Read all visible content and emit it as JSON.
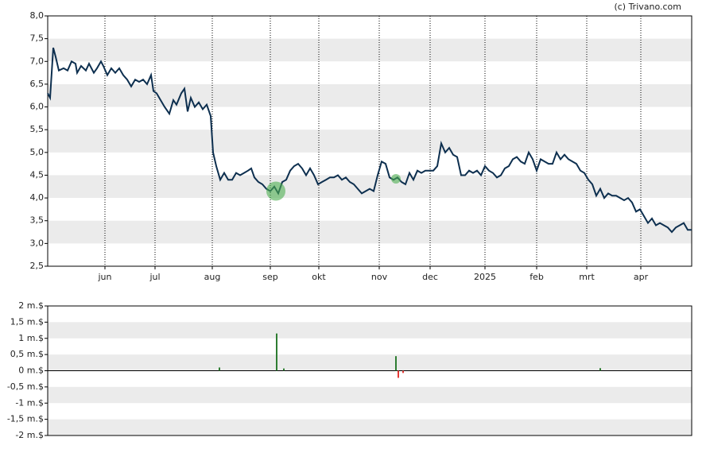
{
  "chart_data": [
    {
      "type": "line",
      "source": "(c) Trivano.com",
      "color": "#0d2f4f",
      "bands": true,
      "x": [
        0,
        3,
        7,
        10,
        14,
        20,
        25,
        30,
        35,
        37,
        42,
        48,
        52,
        58,
        62,
        67,
        70,
        75,
        80,
        85,
        90,
        95,
        100,
        105,
        110,
        115,
        120,
        125,
        130,
        133,
        137,
        142,
        147,
        153,
        158,
        162,
        168,
        172,
        176,
        180,
        185,
        190,
        195,
        200,
        205,
        208,
        212,
        217,
        222,
        227,
        232,
        237,
        242,
        247,
        252,
        256,
        260,
        265,
        270,
        275,
        280,
        285,
        290,
        295,
        300,
        305,
        310,
        315,
        320,
        325,
        330,
        335,
        340,
        345,
        350,
        355,
        360,
        365,
        370,
        375,
        380,
        385,
        390,
        395,
        400,
        405,
        410,
        415,
        420,
        425,
        430,
        435,
        440,
        445,
        450,
        455,
        460,
        465,
        470,
        475,
        480,
        485,
        490,
        495,
        500,
        505,
        510,
        515,
        520,
        525,
        530,
        535,
        540,
        545,
        550,
        555,
        560,
        565,
        570,
        575,
        580,
        585,
        590,
        595,
        600,
        605,
        610,
        615,
        620,
        625,
        630,
        635,
        640,
        645,
        650,
        655,
        660,
        665,
        670,
        675,
        680,
        685,
        690,
        695,
        700,
        705,
        710,
        715,
        720,
        725,
        730,
        735,
        740,
        745,
        750,
        755,
        760,
        765,
        770,
        775,
        780,
        785,
        790,
        795,
        800,
        805,
        810
      ],
      "values": [
        6.3,
        6.2,
        7.3,
        7.1,
        6.8,
        6.85,
        6.8,
        7.0,
        6.95,
        6.75,
        6.9,
        6.8,
        6.95,
        6.75,
        6.85,
        7.0,
        6.9,
        6.7,
        6.85,
        6.75,
        6.85,
        6.7,
        6.6,
        6.45,
        6.6,
        6.55,
        6.6,
        6.5,
        6.7,
        6.35,
        6.3,
        6.15,
        6.0,
        5.85,
        6.15,
        6.05,
        6.3,
        6.4,
        5.9,
        6.2,
        6.0,
        6.1,
        5.95,
        6.05,
        5.8,
        5.0,
        4.7,
        4.4,
        4.55,
        4.4,
        4.4,
        4.55,
        4.5,
        4.55,
        4.6,
        4.65,
        4.45,
        4.35,
        4.3,
        4.2,
        4.15,
        4.25,
        4.1,
        4.35,
        4.4,
        4.6,
        4.7,
        4.75,
        4.65,
        4.5,
        4.65,
        4.5,
        4.3,
        4.35,
        4.4,
        4.45,
        4.45,
        4.5,
        4.4,
        4.45,
        4.35,
        4.3,
        4.2,
        4.1,
        4.15,
        4.2,
        4.15,
        4.5,
        4.8,
        4.75,
        4.45,
        4.4,
        4.45,
        4.35,
        4.3,
        4.55,
        4.4,
        4.6,
        4.55,
        4.6,
        4.6,
        4.6,
        4.7,
        5.2,
        5.0,
        5.1,
        4.95,
        4.9,
        4.5,
        4.5,
        4.6,
        4.55,
        4.6,
        4.5,
        4.7,
        4.6,
        4.55,
        4.45,
        4.5,
        4.65,
        4.7,
        4.85,
        4.9,
        4.8,
        4.75,
        5.0,
        4.85,
        4.6,
        4.85,
        4.8,
        4.75,
        4.75,
        5.0,
        4.85,
        4.95,
        4.85,
        4.8,
        4.75,
        4.6,
        4.55,
        4.4,
        4.3,
        4.05,
        4.2,
        4.0,
        4.1,
        4.05,
        4.05,
        4.0,
        3.95,
        4.0,
        3.9,
        3.7,
        3.75,
        3.6,
        3.45,
        3.55,
        3.4,
        3.45,
        3.4,
        3.35,
        3.25,
        3.35,
        3.4,
        3.45,
        3.3,
        3.3
      ],
      "markers": {
        "color": "#4caf50",
        "x": [
          287,
          438
        ],
        "values": [
          4.15,
          4.42
        ]
      },
      "xlim": [
        0,
        810
      ],
      "xticks": [
        {
          "value": 72,
          "label": "jun"
        },
        {
          "value": 135,
          "label": "jul"
        },
        {
          "value": 207,
          "label": "aug"
        },
        {
          "value": 280,
          "label": "sep"
        },
        {
          "value": 341,
          "label": "okt"
        },
        {
          "value": 417,
          "label": "nov"
        },
        {
          "value": 481,
          "label": "dec"
        },
        {
          "value": 550,
          "label": "2025"
        },
        {
          "value": 615,
          "label": "feb"
        },
        {
          "value": 678,
          "label": "mrt"
        },
        {
          "value": 746,
          "label": "apr"
        }
      ],
      "ylim": [
        2.5,
        8
      ],
      "yticks": [
        {
          "value": 2.5,
          "label": "2,5"
        },
        {
          "value": 3,
          "label": "3,0"
        },
        {
          "value": 3.5,
          "label": "3,5"
        },
        {
          "value": 4,
          "label": "4,0"
        },
        {
          "value": 4.5,
          "label": "4,5"
        },
        {
          "value": 5,
          "label": "5,0"
        },
        {
          "value": 5.5,
          "label": "5,5"
        },
        {
          "value": 6,
          "label": "6,0"
        },
        {
          "value": 6.5,
          "label": "6,5"
        },
        {
          "value": 7,
          "label": "7,0"
        },
        {
          "value": 7.5,
          "label": "7,5"
        },
        {
          "value": 8,
          "label": "8,0"
        }
      ]
    },
    {
      "type": "bar",
      "bands": true,
      "x": [
        216,
        288,
        297,
        438,
        441,
        447,
        695
      ],
      "values": [
        0.1,
        1.15,
        0.07,
        0.45,
        -0.22,
        -0.07,
        0.08
      ],
      "colors": [
        "#2e7d32",
        "#2e7d32",
        "#2e7d32",
        "#2e7d32",
        "#e53935",
        "#e53935",
        "#2e7d32"
      ],
      "xlim": [
        0,
        810
      ],
      "ylim": [
        -2,
        2
      ],
      "yticks": [
        {
          "value": -2,
          "label": "-2 m.$"
        },
        {
          "value": -1.5,
          "label": "-1,5 m.$"
        },
        {
          "value": -1,
          "label": "-1 m.$"
        },
        {
          "value": -0.5,
          "label": "-0,5 m.$"
        },
        {
          "value": 0,
          "label": "0 m.$"
        },
        {
          "value": 0.5,
          "label": "0,5 m.$"
        },
        {
          "value": 1,
          "label": "1 m.$"
        },
        {
          "value": 1.5,
          "label": "1,5 m.$"
        },
        {
          "value": 2,
          "label": "2 m.$"
        }
      ]
    }
  ]
}
